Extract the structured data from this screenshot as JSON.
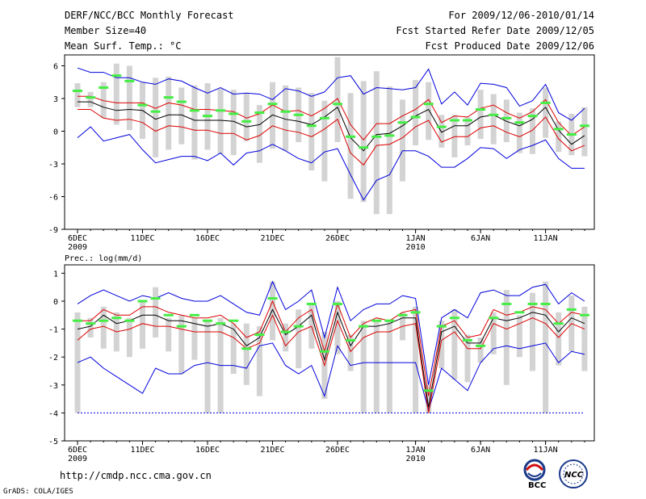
{
  "header": {
    "line1_left": "DERF/NCC/BCC Monthly Forecast",
    "line2_left": "Member Size=40",
    "line3_left": "Mean Surf. Temp.: °C",
    "line1_right": "For 2009/12/06-2010/01/14",
    "line2_right": "Fcst Started Refer Date 2009/12/05",
    "line3_right": "Fcst Produced Date 2009/12/06"
  },
  "footer": {
    "url": "http://cmdp.ncc.cma.gov.cn",
    "grads": "GrADS: COLA/IGES",
    "logo1_text": "BCC",
    "logo2_text": "NCC"
  },
  "colors": {
    "box": "#d3d3d3",
    "median": "#44ee44",
    "mean": "#000000",
    "sd": "#dd0000",
    "extreme": "#0000dd"
  },
  "chart_data": [
    {
      "type": "line",
      "title": "Mean Surf. Temp.: °C",
      "x_day_index": [
        0,
        1,
        2,
        3,
        4,
        5,
        6,
        7,
        8,
        9,
        10,
        11,
        12,
        13,
        14,
        15,
        16,
        17,
        18,
        19,
        20,
        21,
        22,
        23,
        24,
        25,
        26,
        27,
        28,
        29,
        30,
        31,
        32,
        33,
        34,
        35,
        36,
        37,
        38,
        39
      ],
      "xticks": [
        {
          "day": 0,
          "label": "6DEC",
          "sub": "2009"
        },
        {
          "day": 5,
          "label": "11DEC",
          "sub": ""
        },
        {
          "day": 10,
          "label": "16DEC",
          "sub": ""
        },
        {
          "day": 15,
          "label": "21DEC",
          "sub": ""
        },
        {
          "day": 20,
          "label": "26DEC",
          "sub": ""
        },
        {
          "day": 26,
          "label": "1JAN",
          "sub": "2010"
        },
        {
          "day": 31,
          "label": "6JAN",
          "sub": ""
        },
        {
          "day": 36,
          "label": "11JAN",
          "sub": ""
        }
      ],
      "yticks": [
        6,
        3,
        0,
        -3,
        -6,
        -9
      ],
      "ylim": [
        -9,
        7
      ],
      "series": [
        {
          "name": "max",
          "values": [
            5.8,
            5.4,
            5.4,
            4.9,
            4.9,
            4.5,
            4.3,
            4.8,
            4.6,
            4.0,
            3.5,
            4.0,
            3.4,
            3.5,
            3.4,
            2.9,
            3.9,
            3.7,
            3.2,
            3.6,
            4.9,
            5.1,
            3.4,
            4.0,
            3.9,
            3.8,
            4.0,
            5.7,
            2.5,
            3.6,
            2.4,
            4.4,
            4.3,
            4.0,
            2.3,
            2.8,
            4.3,
            1.7,
            1.0,
            2.1
          ]
        },
        {
          "name": "mean_plus_sd",
          "values": [
            3.2,
            3.2,
            2.8,
            2.6,
            2.6,
            2.6,
            2.1,
            2.6,
            2.4,
            2.0,
            2.0,
            1.9,
            1.8,
            1.2,
            1.6,
            2.4,
            1.8,
            1.9,
            1.4,
            2.1,
            3.0,
            0.6,
            -0.8,
            0.7,
            0.7,
            1.4,
            2.0,
            2.9,
            0.8,
            1.4,
            1.3,
            2.1,
            2.4,
            1.7,
            1.2,
            1.8,
            2.9,
            0.8,
            -0.4,
            0.4
          ]
        },
        {
          "name": "mean",
          "values": [
            2.7,
            2.7,
            2.2,
            1.9,
            2.0,
            1.9,
            1.1,
            1.5,
            1.5,
            1.0,
            1.0,
            1.0,
            0.9,
            0.4,
            0.6,
            1.5,
            1.1,
            0.9,
            0.6,
            1.3,
            2.2,
            -0.6,
            -1.8,
            -0.3,
            -0.2,
            0.5,
            1.4,
            2.0,
            -0.1,
            0.5,
            0.5,
            1.3,
            1.5,
            0.9,
            0.5,
            1.1,
            2.2,
            0.1,
            -1.2,
            -0.4
          ]
        },
        {
          "name": "mean_minus_sd",
          "values": [
            2.0,
            2.0,
            1.2,
            1.0,
            1.1,
            0.8,
            0.0,
            0.5,
            0.4,
            0.1,
            0.1,
            -0.2,
            -0.2,
            -0.8,
            -0.4,
            0.5,
            0.1,
            -0.1,
            -0.5,
            0.2,
            1.1,
            -2.0,
            -3.1,
            -1.3,
            -1.2,
            -0.6,
            0.4,
            1.0,
            -1.0,
            -0.5,
            -0.5,
            0.3,
            0.5,
            -0.1,
            -0.5,
            0.1,
            1.3,
            -0.7,
            -1.8,
            -1.3
          ]
        },
        {
          "name": "min",
          "values": [
            -0.6,
            0.4,
            -0.9,
            -0.6,
            -0.3,
            -1.7,
            -2.9,
            -2.6,
            -2.3,
            -2.3,
            -2.7,
            -2.0,
            -3.1,
            -2.0,
            -1.8,
            -1.2,
            -1.8,
            -2.5,
            -2.9,
            -1.9,
            -1.6,
            -4.0,
            -6.3,
            -4.5,
            -4.0,
            -1.8,
            -1.8,
            -2.3,
            -3.3,
            -3.3,
            -2.5,
            -1.5,
            -1.6,
            -2.5,
            -1.7,
            -1.3,
            -0.8,
            -2.5,
            -3.4,
            -3.4
          ]
        },
        {
          "name": "box_top",
          "values": [
            4.4,
            3.6,
            4.5,
            6.2,
            6.0,
            4.5,
            4.9,
            5.0,
            4.0,
            4.2,
            4.4,
            3.9,
            3.8,
            3.5,
            2.4,
            4.5,
            4.2,
            4.0,
            3.5,
            2.8,
            6.8,
            3.5,
            4.6,
            5.5,
            4.1,
            2.9,
            4.7,
            4.5,
            1.5,
            1.5,
            1.3,
            3.8,
            3.4,
            2.9,
            1.7,
            2.1,
            4.0,
            0.9,
            1.6,
            2.2
          ]
        },
        {
          "name": "box_bottom",
          "values": [
            2.2,
            2.2,
            1.2,
            0.6,
            0.1,
            -0.7,
            -2.4,
            -1.7,
            -1.2,
            -2.6,
            -1.7,
            -2.1,
            -2.2,
            -0.9,
            -2.9,
            -1.6,
            -1.8,
            -1.0,
            -3.6,
            -4.6,
            -1.0,
            -6.2,
            -6.5,
            -7.6,
            -7.6,
            -4.6,
            -1.3,
            -0.8,
            -1.5,
            -2.4,
            -1.3,
            -0.7,
            -1.2,
            -1.0,
            -2.0,
            -2.1,
            -0.6,
            -1.9,
            -2.2,
            -2.3
          ]
        },
        {
          "name": "median",
          "values": [
            3.7,
            3.1,
            4.0,
            5.1,
            4.6,
            2.4,
            1.8,
            3.1,
            2.7,
            1.9,
            1.4,
            1.9,
            1.6,
            0.9,
            1.7,
            2.5,
            1.8,
            1.5,
            0.5,
            1.2,
            2.5,
            -0.5,
            -1.5,
            -0.5,
            -0.4,
            0.8,
            1.3,
            2.5,
            0.4,
            1.0,
            1.0,
            2.0,
            1.5,
            1.2,
            0.8,
            1.4,
            2.6,
            0.2,
            -0.3,
            0.5
          ]
        }
      ]
    },
    {
      "type": "line",
      "title": "Prec.: log(mm/d)",
      "x_day_index": [
        0,
        1,
        2,
        3,
        4,
        5,
        6,
        7,
        8,
        9,
        10,
        11,
        12,
        13,
        14,
        15,
        16,
        17,
        18,
        19,
        20,
        21,
        22,
        23,
        24,
        25,
        26,
        27,
        28,
        29,
        30,
        31,
        32,
        33,
        34,
        35,
        36,
        37,
        38,
        39
      ],
      "xticks": [
        {
          "day": 0,
          "label": "6DEC",
          "sub": "2009"
        },
        {
          "day": 5,
          "label": "11DEC",
          "sub": ""
        },
        {
          "day": 10,
          "label": "16DEC",
          "sub": ""
        },
        {
          "day": 15,
          "label": "21DEC",
          "sub": ""
        },
        {
          "day": 20,
          "label": "26DEC",
          "sub": ""
        },
        {
          "day": 26,
          "label": "1JAN",
          "sub": "2010"
        },
        {
          "day": 31,
          "label": "6JAN",
          "sub": ""
        },
        {
          "day": 36,
          "label": "11JAN",
          "sub": ""
        }
      ],
      "yticks": [
        1,
        0,
        -1,
        -2,
        -3,
        -4,
        -5
      ],
      "ylim": [
        -5,
        1.3
      ],
      "series": [
        {
          "name": "max",
          "values": [
            -0.1,
            0.2,
            0.4,
            0.2,
            0.0,
            0.2,
            0.1,
            0.3,
            0.1,
            0.0,
            0.0,
            0.2,
            -0.1,
            -0.4,
            -0.5,
            0.7,
            -0.3,
            0.0,
            0.4,
            -1.3,
            0.5,
            -0.7,
            -0.3,
            -0.1,
            -0.1,
            0.2,
            0.1,
            -3.0,
            -0.6,
            -0.3,
            -0.6,
            0.3,
            0.4,
            0.2,
            0.2,
            0.5,
            0.6,
            -0.1,
            0.3,
            0.0
          ]
        },
        {
          "name": "mean_plus_sd",
          "values": [
            -0.7,
            -0.7,
            -0.3,
            -0.5,
            -0.5,
            -0.2,
            -0.2,
            -0.4,
            -0.5,
            -0.6,
            -0.6,
            -0.5,
            -0.8,
            -1.3,
            -1.1,
            0.0,
            -1.1,
            -0.6,
            -0.3,
            -1.8,
            -0.1,
            -1.3,
            -0.8,
            -0.6,
            -0.7,
            -0.4,
            -0.3,
            -3.4,
            -0.9,
            -0.7,
            -1.3,
            -1.2,
            -0.3,
            -0.5,
            -0.4,
            -0.2,
            -0.3,
            -0.8,
            -0.4,
            -0.5
          ]
        },
        {
          "name": "mean",
          "values": [
            -1.0,
            -0.9,
            -0.5,
            -0.8,
            -0.7,
            -0.5,
            -0.5,
            -0.7,
            -0.7,
            -0.8,
            -0.9,
            -0.8,
            -1.0,
            -1.6,
            -1.3,
            -0.3,
            -1.2,
            -0.9,
            -0.5,
            -2.1,
            -0.4,
            -1.6,
            -0.9,
            -0.9,
            -0.8,
            -0.6,
            -0.6,
            -3.8,
            -1.1,
            -0.9,
            -1.5,
            -1.5,
            -0.6,
            -0.7,
            -0.6,
            -0.4,
            -0.5,
            -1.1,
            -0.6,
            -0.8
          ]
        },
        {
          "name": "mean_minus_sd",
          "values": [
            -1.4,
            -1.0,
            -0.9,
            -1.1,
            -1.0,
            -0.8,
            -0.9,
            -0.9,
            -1.0,
            -1.1,
            -1.1,
            -1.1,
            -1.3,
            -1.7,
            -1.5,
            -0.5,
            -1.6,
            -1.1,
            -0.9,
            -2.3,
            -0.7,
            -1.8,
            -1.3,
            -1.1,
            -1.1,
            -0.9,
            -0.8,
            -4.0,
            -1.4,
            -1.1,
            -1.7,
            -1.7,
            -0.8,
            -1.0,
            -0.8,
            -0.6,
            -0.8,
            -1.3,
            -0.8,
            -1.0
          ]
        },
        {
          "name": "min",
          "values": [
            -2.2,
            -2.0,
            -2.4,
            -2.7,
            -3.0,
            -3.3,
            -2.4,
            -2.6,
            -2.6,
            -2.3,
            -2.2,
            -2.3,
            -2.3,
            -2.4,
            -1.6,
            -1.5,
            -2.3,
            -2.6,
            -2.3,
            -3.4,
            -1.6,
            -2.3,
            -2.2,
            -2.2,
            -2.2,
            -2.2,
            -2.2,
            -3.9,
            -2.4,
            -2.8,
            -3.2,
            -2.2,
            -1.7,
            -1.6,
            -1.7,
            -1.6,
            -1.5,
            -2.2,
            -1.8,
            -1.9
          ]
        },
        {
          "name": "four_line",
          "values": [
            -4,
            -4,
            -4,
            -4,
            -4,
            -4,
            -4,
            -4,
            -4,
            -4,
            -4,
            -4,
            -4,
            -4,
            -4,
            -4,
            -4,
            -4,
            -4,
            -4,
            -4,
            -4,
            -4,
            -4,
            -4,
            -4,
            -4,
            -4,
            -4,
            -4,
            -4,
            -4,
            -4,
            -4,
            -4,
            -4,
            -4,
            -4,
            -4,
            -4
          ]
        },
        {
          "name": "box_top",
          "values": [
            -0.4,
            -0.6,
            -0.2,
            -0.4,
            -0.6,
            0.0,
            0.5,
            -0.6,
            -0.5,
            -0.6,
            -0.7,
            -0.6,
            -0.8,
            -0.8,
            -0.9,
            0.7,
            -0.8,
            -0.3,
            -0.1,
            -1.1,
            0.0,
            -1.2,
            -0.7,
            -0.7,
            -0.7,
            -0.4,
            -0.2,
            -3.0,
            -0.7,
            -0.3,
            -1.2,
            -1.3,
            -0.4,
            0.4,
            -0.5,
            0.3,
            0.7,
            -0.4,
            0.2,
            -0.2
          ]
        },
        {
          "name": "box_bottom",
          "values": [
            -4.0,
            -1.3,
            -1.7,
            -1.8,
            -2.0,
            -1.7,
            -1.3,
            -1.8,
            -2.6,
            -2.1,
            -4.0,
            -4.0,
            -2.6,
            -3.0,
            -3.4,
            -1.4,
            -1.8,
            -2.4,
            -1.7,
            -3.5,
            -1.9,
            -2.5,
            -4.0,
            -4.0,
            -4.0,
            -1.4,
            -4.0,
            -4.0,
            -2.4,
            -2.8,
            -2.9,
            -2.2,
            -1.9,
            -3.0,
            -2.0,
            -2.5,
            -4.0,
            -2.3,
            -1.8,
            -2.5
          ]
        },
        {
          "name": "median",
          "values": [
            -0.7,
            -0.8,
            -0.7,
            -0.6,
            -0.7,
            0.0,
            0.1,
            -0.5,
            -0.9,
            -0.5,
            -0.7,
            -0.8,
            -0.7,
            -1.7,
            -1.2,
            0.1,
            -1.1,
            -0.9,
            -0.1,
            -1.8,
            -0.1,
            -1.4,
            -0.9,
            -0.7,
            -0.7,
            -0.5,
            -0.4,
            -3.2,
            -0.9,
            -0.6,
            -1.4,
            -1.6,
            -0.6,
            -0.1,
            -0.4,
            -0.1,
            -0.1,
            -0.8,
            -0.3,
            -0.5
          ]
        }
      ]
    }
  ]
}
